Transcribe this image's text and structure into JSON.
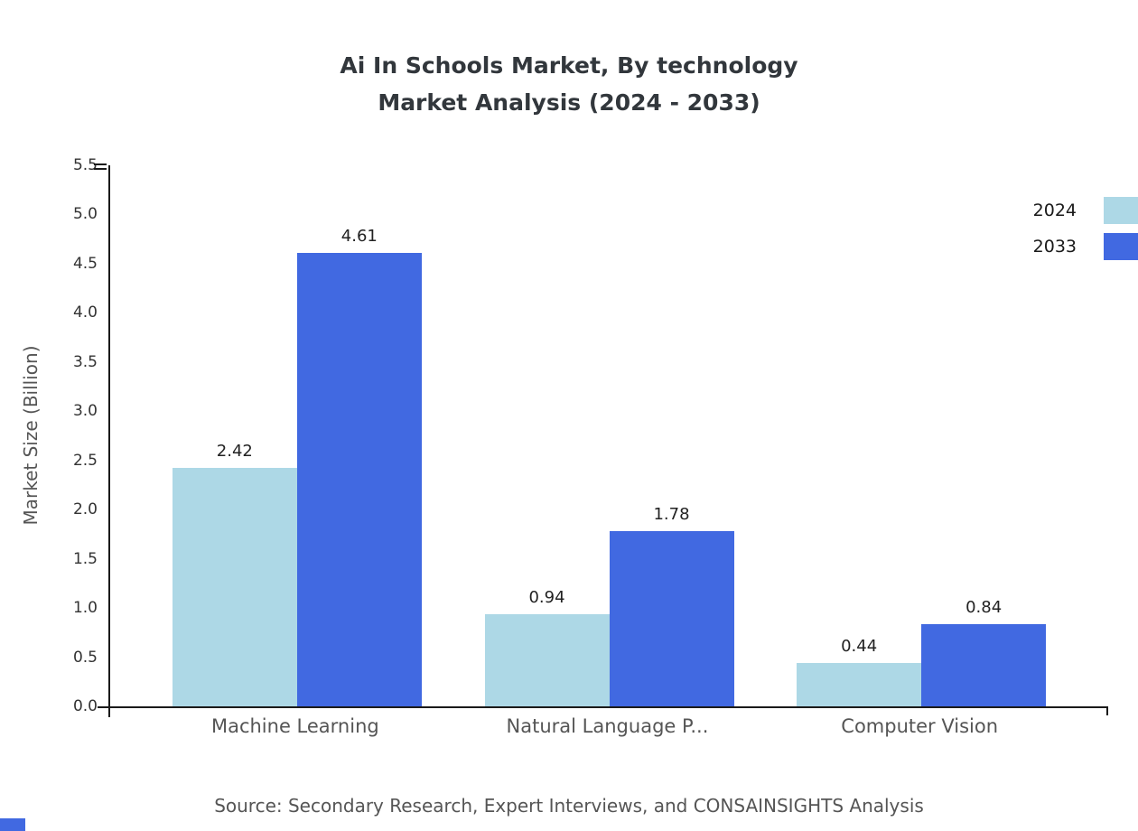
{
  "title": {
    "line1": "Ai In Schools Market, By technology",
    "line2": "Market Analysis (2024 - 2033)"
  },
  "source": "Source: Secondary Research, Expert Interviews, and CONSAINSIGHTS Analysis",
  "chart_data": {
    "type": "bar",
    "title": "Ai In Schools Market, By technology Market Analysis (2024 - 2033)",
    "categories": [
      "Machine Learning",
      "Natural Language P...",
      "Computer Vision"
    ],
    "series": [
      {
        "name": "2024",
        "color": "#ADD8E6",
        "values": [
          2.42,
          0.94,
          0.44
        ]
      },
      {
        "name": "2033",
        "color": "#4169E1",
        "values": [
          4.61,
          1.78,
          0.84
        ]
      }
    ],
    "xlabel": "",
    "ylabel": "Market Size (Billion)",
    "ylim": [
      0,
      5.5
    ],
    "y_tick_step": 0.5,
    "grid": false,
    "legend_position": "top-right"
  }
}
